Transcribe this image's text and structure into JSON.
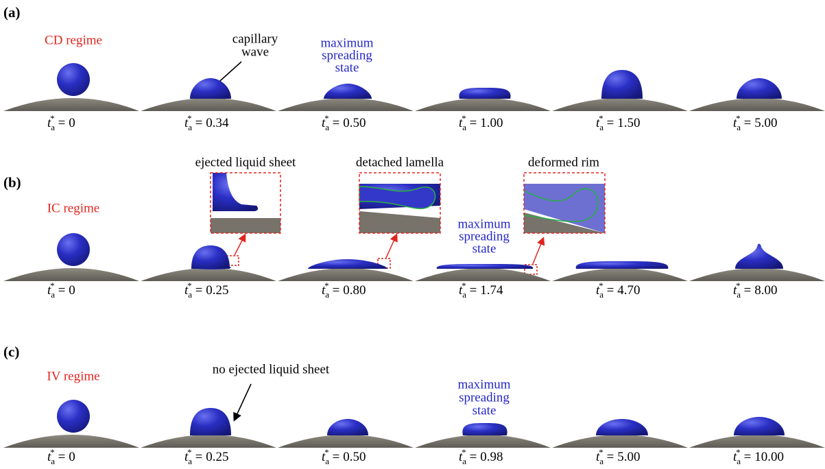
{
  "time_symbol": {
    "base": "t",
    "sub": "a",
    "sup": "*",
    "relation": "="
  },
  "rows": [
    {
      "label": "(a)",
      "regime": "CD regime",
      "times": [
        "0",
        "0.34",
        "0.50",
        "1.00",
        "1.50",
        "5.00"
      ],
      "annotations": [
        {
          "lines": [
            "capillary",
            "wave"
          ]
        },
        {
          "lines": [
            "maximum",
            "spreading",
            "state"
          ]
        }
      ]
    },
    {
      "label": "(b)",
      "regime": "IC regime",
      "times": [
        "0",
        "0.25",
        "0.80",
        "1.74",
        "4.70",
        "8.00"
      ],
      "annotations": [
        {
          "lines": [
            "ejected liquid sheet"
          ]
        },
        {
          "lines": [
            "detached lamella"
          ]
        },
        {
          "lines": [
            "deformed rim"
          ]
        },
        {
          "lines": [
            "maximum",
            "spreading",
            "state"
          ]
        }
      ]
    },
    {
      "label": "(c)",
      "regime": "IV regime",
      "times": [
        "0",
        "0.25",
        "0.50",
        "0.98",
        "5.00",
        "10.00"
      ],
      "annotations": [
        {
          "lines": [
            "no ejected liquid sheet"
          ]
        },
        {
          "lines": [
            "maximum",
            "spreading",
            "state"
          ]
        }
      ]
    }
  ]
}
